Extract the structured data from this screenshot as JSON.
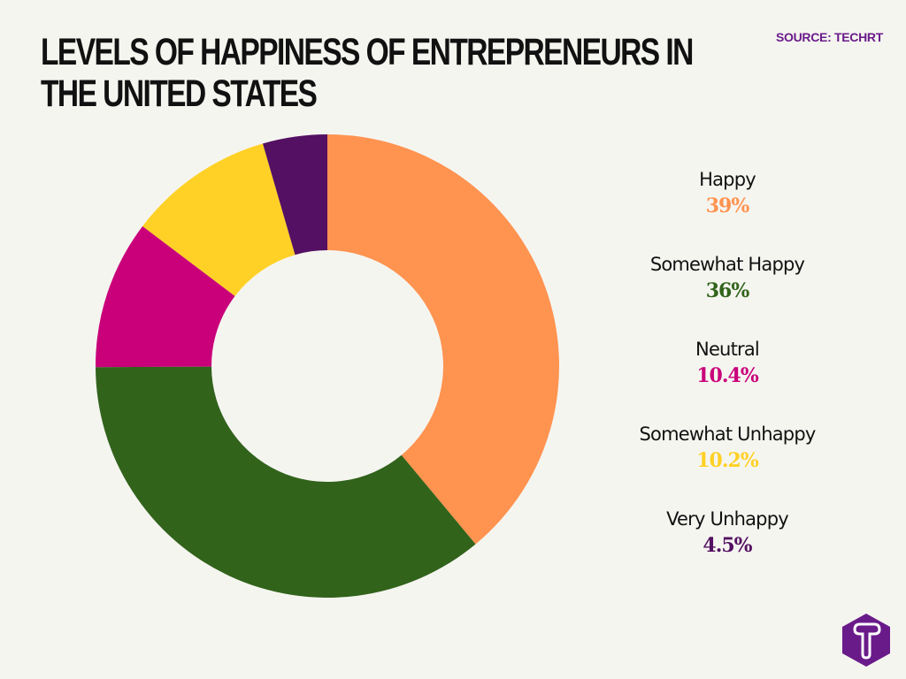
{
  "header": {
    "title": "LEVELS OF HAPPINESS OF ENTREPRENEURS IN THE UNITED STATES",
    "source": "SOURCE: TECHRT"
  },
  "chart_data": {
    "type": "pie",
    "variant": "donut",
    "title": "Levels of Happiness of Entrepreneurs in the United States",
    "source": "SOURCE: TECHRT",
    "categories": [
      "Happy",
      "Somewhat Happy",
      "Neutral",
      "Somewhat Unhappy",
      "Very Unhappy"
    ],
    "values": [
      39,
      36,
      10.4,
      10.2,
      4.5
    ],
    "value_labels": [
      "39%",
      "36%",
      "10.4%",
      "10.2%",
      "4.5%"
    ],
    "colors": [
      "#ff9350",
      "#31631b",
      "#c9007a",
      "#ffd126",
      "#541062"
    ],
    "unit": "%",
    "legend_position": "right",
    "start_angle": "top (12 o'clock), clockwise"
  },
  "legend": {
    "items": [
      {
        "label": "Happy",
        "value": "39%",
        "color": "#ff9350"
      },
      {
        "label": "Somewhat Happy",
        "value": "36%",
        "color": "#31631b"
      },
      {
        "label": "Neutral",
        "value": "10.4%",
        "color": "#c9007a"
      },
      {
        "label": "Somewhat Unhappy",
        "value": "10.2%",
        "color": "#ffd126"
      },
      {
        "label": "Very Unhappy",
        "value": "4.5%",
        "color": "#541062"
      }
    ]
  },
  "brand": {
    "logo_icon": "techrt-t-hexagon-icon",
    "color": "#6a1b8a"
  }
}
